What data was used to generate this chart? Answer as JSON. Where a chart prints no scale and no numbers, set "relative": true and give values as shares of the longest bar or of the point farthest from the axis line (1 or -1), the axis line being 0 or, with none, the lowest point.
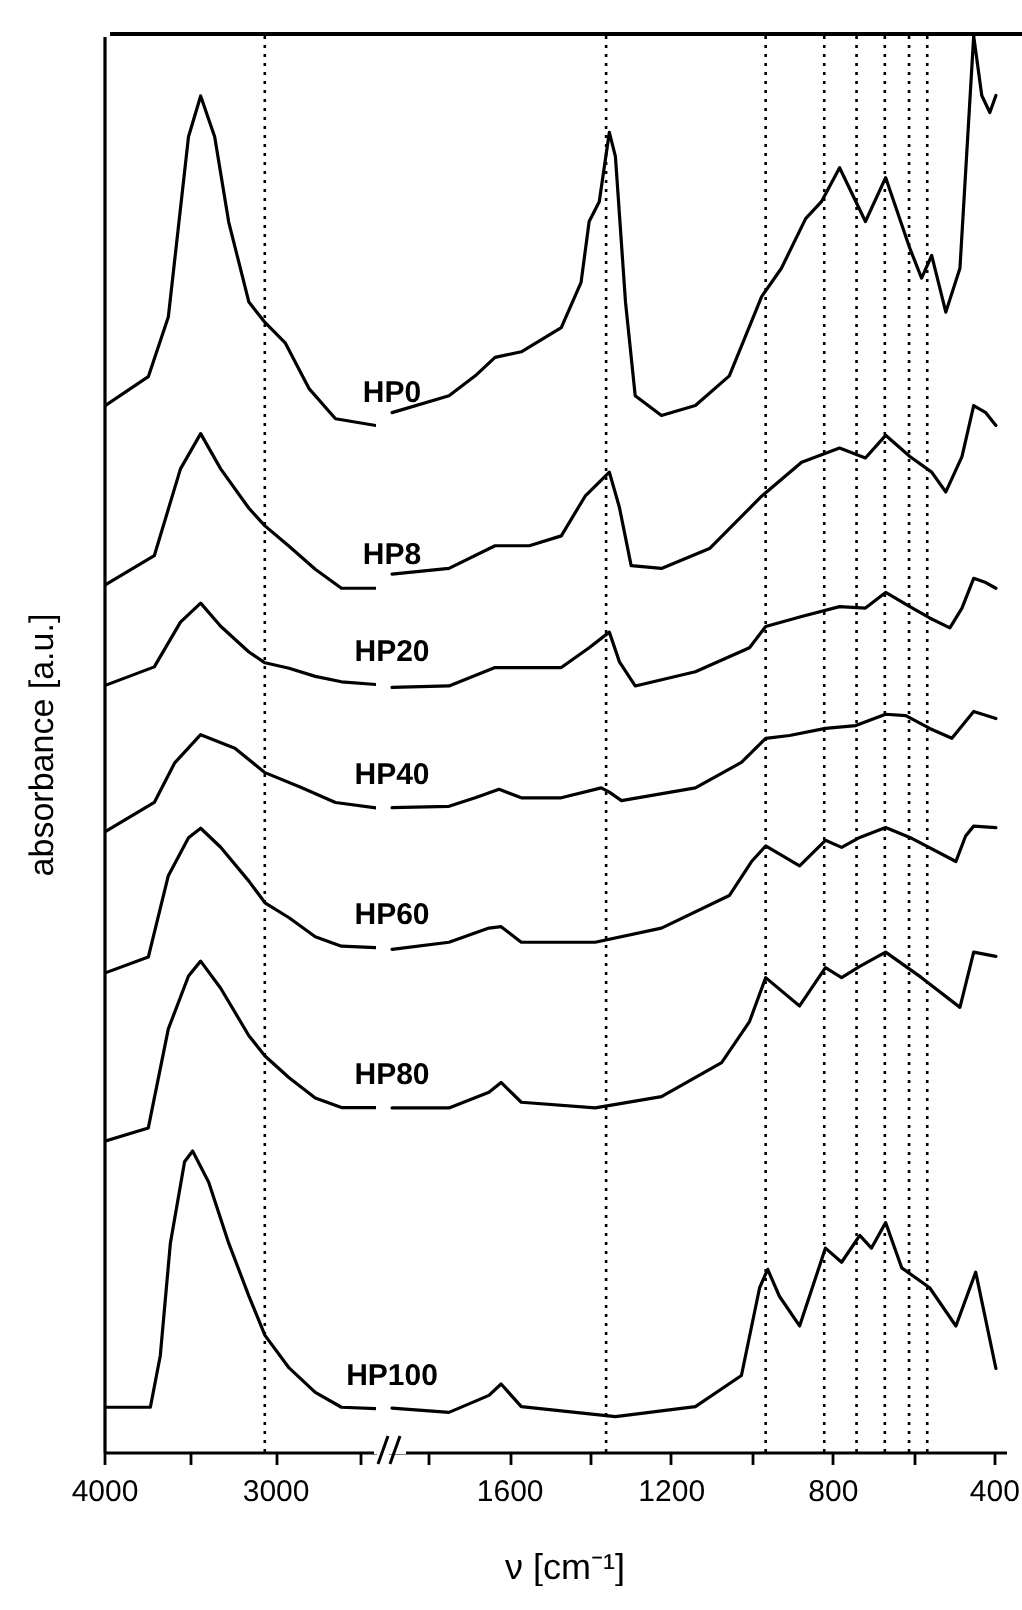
{
  "chart_data": [
    {
      "type": "line",
      "ylabel": "absorbance [a.u.]",
      "relative": true,
      "xlim": [
        4000,
        2410
      ],
      "xticks": [
        4000,
        3000,
        {
          "value": 3500,
          "label": null
        },
        {
          "value": 2500,
          "label": null
        }
      ],
      "ref_lines": [
        {
          "axis": "x",
          "value": 3060,
          "line_style": "dotted",
          "color": "#000000"
        }
      ],
      "series": [
        {
          "name": "HP0",
          "color": "#000000",
          "x": [
            4000,
            3741,
            3624,
            3506,
            3435,
            3353,
            3271,
            3153,
            3059,
            2941,
            2800,
            2647,
            2410
          ],
          "values": [
            0.771,
            0.793,
            0.837,
            0.97,
            1,
            0.97,
            0.907,
            0.848,
            0.833,
            0.818,
            0.784,
            0.762,
            0.757
          ]
        },
        {
          "name": "HP8",
          "color": "#000000",
          "x": [
            4000,
            3706,
            3553,
            3435,
            3318,
            3153,
            3059,
            2918,
            2765,
            2612,
            2410
          ],
          "values": [
            0.639,
            0.661,
            0.725,
            0.751,
            0.725,
            0.696,
            0.683,
            0.668,
            0.651,
            0.637,
            0.637
          ]
        },
        {
          "name": "HP20",
          "color": "#000000",
          "x": [
            4000,
            3706,
            3553,
            3435,
            3318,
            3153,
            3059,
            2918,
            2765,
            2612,
            2410
          ],
          "values": [
            0.565,
            0.579,
            0.612,
            0.626,
            0.609,
            0.59,
            0.582,
            0.578,
            0.572,
            0.568,
            0.566
          ]
        },
        {
          "name": "HP40",
          "color": "#000000",
          "x": [
            4000,
            3706,
            3588,
            3435,
            3235,
            3059,
            2847,
            2647,
            2410
          ],
          "values": [
            0.457,
            0.479,
            0.508,
            0.529,
            0.519,
            0.501,
            0.49,
            0.479,
            0.475
          ]
        },
        {
          "name": "HP60",
          "color": "#000000",
          "x": [
            4000,
            3741,
            3624,
            3506,
            3435,
            3318,
            3153,
            3059,
            2918,
            2765,
            2612,
            2410
          ],
          "values": [
            0.353,
            0.365,
            0.425,
            0.453,
            0.46,
            0.446,
            0.421,
            0.405,
            0.394,
            0.38,
            0.373,
            0.372
          ]
        },
        {
          "name": "HP80",
          "color": "#000000",
          "x": [
            4000,
            3741,
            3624,
            3506,
            3435,
            3318,
            3153,
            3059,
            2918,
            2765,
            2612,
            2410
          ],
          "values": [
            0.229,
            0.239,
            0.312,
            0.351,
            0.362,
            0.342,
            0.307,
            0.292,
            0.276,
            0.261,
            0.254,
            0.254
          ]
        },
        {
          "name": "HP100",
          "color": "#000000",
          "x": [
            4000,
            3729,
            3671,
            3612,
            3529,
            3482,
            3388,
            3271,
            3153,
            3059,
            2918,
            2765,
            2612,
            2410
          ],
          "values": [
            0.033,
            0.033,
            0.071,
            0.154,
            0.214,
            0.222,
            0.199,
            0.154,
            0.115,
            0.086,
            0.062,
            0.044,
            0.033,
            0.032
          ]
        }
      ]
    },
    {
      "type": "line",
      "xlabel": "ν [cm⁻¹]",
      "relative": true,
      "xlim": [
        1900,
        370
      ],
      "xticks": [
        1600,
        1200,
        800,
        400,
        {
          "value": 1800,
          "label": null
        },
        {
          "value": 1400,
          "label": null
        },
        {
          "value": 1000,
          "label": null
        },
        {
          "value": 600,
          "label": null
        }
      ],
      "ref_lines": [
        {
          "axis": "x",
          "value": 1360,
          "line_style": "dotted",
          "color": "#000000"
        },
        {
          "axis": "x",
          "value": 965,
          "line_style": "dotted",
          "color": "#000000"
        },
        {
          "axis": "x",
          "value": 820,
          "line_style": "dotted",
          "color": "#000000"
        },
        {
          "axis": "x",
          "value": 740,
          "line_style": "dotted",
          "color": "#000000"
        },
        {
          "axis": "x",
          "value": 670,
          "line_style": "dotted",
          "color": "#000000"
        },
        {
          "axis": "x",
          "value": 610,
          "line_style": "dotted",
          "color": "#000000"
        },
        {
          "axis": "x",
          "value": 565,
          "line_style": "dotted",
          "color": "#000000"
        }
      ],
      "series": [
        {
          "color": "#000000",
          "x": [
            1890,
            1749,
            1684,
            1635,
            1570,
            1471,
            1422,
            1402,
            1377,
            1352,
            1337,
            1312,
            1288,
            1223,
            1139,
            1055,
            975,
            926,
            866,
            827,
            782,
            718,
            668,
            608,
            579,
            554,
            519,
            484,
            450,
            430,
            410,
            395
          ],
          "values": [
            0.734,
            0.746,
            0.76,
            0.773,
            0.777,
            0.794,
            0.826,
            0.869,
            0.883,
            0.932,
            0.915,
            0.812,
            0.746,
            0.732,
            0.739,
            0.76,
            0.816,
            0.836,
            0.871,
            0.883,
            0.907,
            0.869,
            0.9,
            0.85,
            0.829,
            0.845,
            0.805,
            0.836,
            1,
            0.958,
            0.946,
            0.958
          ]
        },
        {
          "color": "#000000",
          "x": [
            1890,
            1749,
            1635,
            1550,
            1471,
            1412,
            1352,
            1327,
            1298,
            1223,
            1104,
            975,
            876,
            782,
            718,
            668,
            608,
            554,
            519,
            479,
            450,
            420,
            395
          ],
          "values": [
            0.62,
            0.624,
            0.64,
            0.64,
            0.647,
            0.675,
            0.692,
            0.667,
            0.626,
            0.624,
            0.638,
            0.675,
            0.699,
            0.709,
            0.702,
            0.718,
            0.703,
            0.692,
            0.678,
            0.703,
            0.739,
            0.734,
            0.725
          ]
        },
        {
          "color": "#000000",
          "x": [
            1890,
            1749,
            1635,
            1471,
            1402,
            1352,
            1327,
            1288,
            1139,
            1005,
            965,
            876,
            782,
            718,
            668,
            608,
            559,
            509,
            479,
            450,
            420,
            395
          ],
          "values": [
            0.54,
            0.541,
            0.554,
            0.554,
            0.568,
            0.579,
            0.558,
            0.541,
            0.551,
            0.568,
            0.583,
            0.59,
            0.597,
            0.596,
            0.607,
            0.597,
            0.589,
            0.582,
            0.596,
            0.617,
            0.614,
            0.61
          ]
        },
        {
          "color": "#000000",
          "x": [
            1890,
            1749,
            1684,
            1625,
            1570,
            1471,
            1372,
            1352,
            1322,
            1139,
            1025,
            965,
            906,
            817,
            742,
            668,
            618,
            559,
            504,
            450,
            395
          ],
          "values": [
            0.455,
            0.456,
            0.462,
            0.468,
            0.462,
            0.462,
            0.469,
            0.466,
            0.46,
            0.469,
            0.487,
            0.504,
            0.506,
            0.511,
            0.513,
            0.521,
            0.52,
            0.511,
            0.504,
            0.523,
            0.518
          ]
        },
        {
          "color": "#000000",
          "x": [
            1890,
            1749,
            1650,
            1620,
            1570,
            1387,
            1223,
            1055,
            1000,
            965,
            881,
            817,
            777,
            732,
            668,
            608,
            494,
            470,
            450,
            395
          ],
          "values": [
            0.355,
            0.36,
            0.37,
            0.371,
            0.36,
            0.36,
            0.37,
            0.393,
            0.417,
            0.428,
            0.414,
            0.432,
            0.427,
            0.434,
            0.441,
            0.434,
            0.417,
            0.435,
            0.442,
            0.441
          ]
        },
        {
          "color": "#000000",
          "x": [
            1890,
            1749,
            1650,
            1620,
            1570,
            1387,
            1223,
            1074,
            1005,
            965,
            881,
            817,
            777,
            732,
            668,
            579,
            484,
            450,
            395
          ],
          "values": [
            0.243,
            0.243,
            0.254,
            0.261,
            0.247,
            0.243,
            0.251,
            0.275,
            0.304,
            0.335,
            0.315,
            0.342,
            0.335,
            0.343,
            0.353,
            0.335,
            0.314,
            0.353,
            0.35
          ]
        },
        {
          "color": "#000000",
          "x": [
            1890,
            1749,
            1650,
            1620,
            1570,
            1337,
            1139,
            1025,
            980,
            960,
            931,
            881,
            817,
            777,
            732,
            703,
            668,
            628,
            559,
            494,
            445,
            395
          ],
          "values": [
            0.031,
            0.028,
            0.04,
            0.048,
            0.032,
            0.025,
            0.032,
            0.054,
            0.116,
            0.129,
            0.11,
            0.089,
            0.144,
            0.134,
            0.153,
            0.144,
            0.162,
            0.13,
            0.116,
            0.089,
            0.127,
            0.059
          ]
        }
      ]
    }
  ]
}
